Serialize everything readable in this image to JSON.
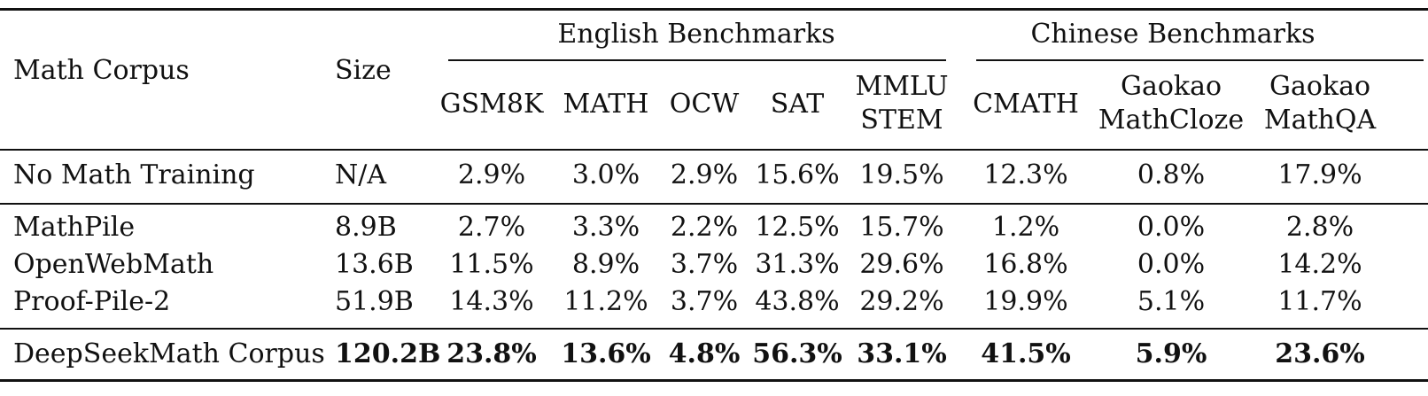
{
  "table": {
    "header": {
      "corpus_label": "Math Corpus",
      "size_label": "Size",
      "group_english": "English Benchmarks",
      "group_chinese": "Chinese Benchmarks",
      "columns": [
        {
          "line1": "GSM8K",
          "line2": ""
        },
        {
          "line1": "MATH",
          "line2": ""
        },
        {
          "line1": "OCW",
          "line2": ""
        },
        {
          "line1": "SAT",
          "line2": ""
        },
        {
          "line1": "MMLU",
          "line2": "STEM"
        },
        {
          "line1": "CMATH",
          "line2": ""
        },
        {
          "line1": "Gaokao",
          "line2": "MathCloze"
        },
        {
          "line1": "Gaokao",
          "line2": "MathQA"
        }
      ]
    },
    "rows": [
      {
        "name": "No Math Training",
        "size": "N/A",
        "values": [
          "2.9%",
          "3.0%",
          "2.9%",
          "15.6%",
          "19.5%",
          "12.3%",
          "0.8%",
          "17.9%"
        ]
      },
      {
        "name": "MathPile",
        "size": "8.9B",
        "values": [
          "2.7%",
          "3.3%",
          "2.2%",
          "12.5%",
          "15.7%",
          "1.2%",
          "0.0%",
          "2.8%"
        ]
      },
      {
        "name": "OpenWebMath",
        "size": "13.6B",
        "values": [
          "11.5%",
          "8.9%",
          "3.7%",
          "31.3%",
          "29.6%",
          "16.8%",
          "0.0%",
          "14.2%"
        ]
      },
      {
        "name": "Proof-Pile-2",
        "size": "51.9B",
        "values": [
          "14.3%",
          "11.2%",
          "3.7%",
          "43.8%",
          "29.2%",
          "19.9%",
          "5.1%",
          "11.7%"
        ]
      },
      {
        "name": "DeepSeekMath Corpus",
        "size": "120.2B",
        "values": [
          "23.8%",
          "13.6%",
          "4.8%",
          "56.3%",
          "33.1%",
          "41.5%",
          "5.9%",
          "23.6%"
        ]
      }
    ]
  }
}
